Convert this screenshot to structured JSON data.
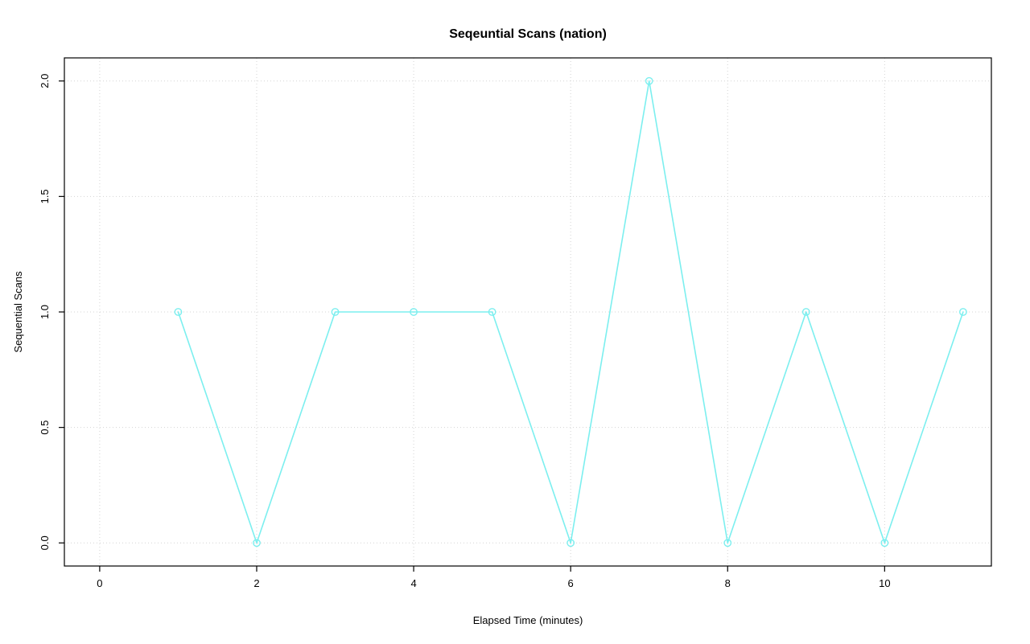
{
  "chart_data": {
    "type": "line",
    "title": "Seqeuntial Scans (nation)",
    "xlabel": "Elapsed Time (minutes)",
    "ylabel": "Sequential Scans",
    "x": [
      1,
      2,
      3,
      4,
      5,
      6,
      7,
      8,
      9,
      10,
      11
    ],
    "y": [
      1,
      0,
      1,
      1,
      1,
      0,
      2,
      0,
      1,
      0,
      1
    ],
    "series_name": "Sequential Scans",
    "series_color": "#7cefef",
    "marker": "open-circle",
    "xlim": [
      -0.45,
      11.36
    ],
    "ylim": [
      -0.1,
      2.1
    ],
    "x_ticks": [
      0,
      2,
      4,
      6,
      8,
      10
    ],
    "x_tick_labels": [
      "0",
      "2",
      "4",
      "6",
      "8",
      "10"
    ],
    "y_ticks": [
      0,
      0.5,
      1,
      1.5,
      2
    ],
    "y_tick_labels": [
      "0.0",
      "0.5",
      "1.0",
      "1.5",
      "2.0"
    ],
    "grid": "dotted",
    "grid_color": "#d4d4d4",
    "box_color": "#000000",
    "legend_position": "none",
    "background": "#ffffff"
  }
}
